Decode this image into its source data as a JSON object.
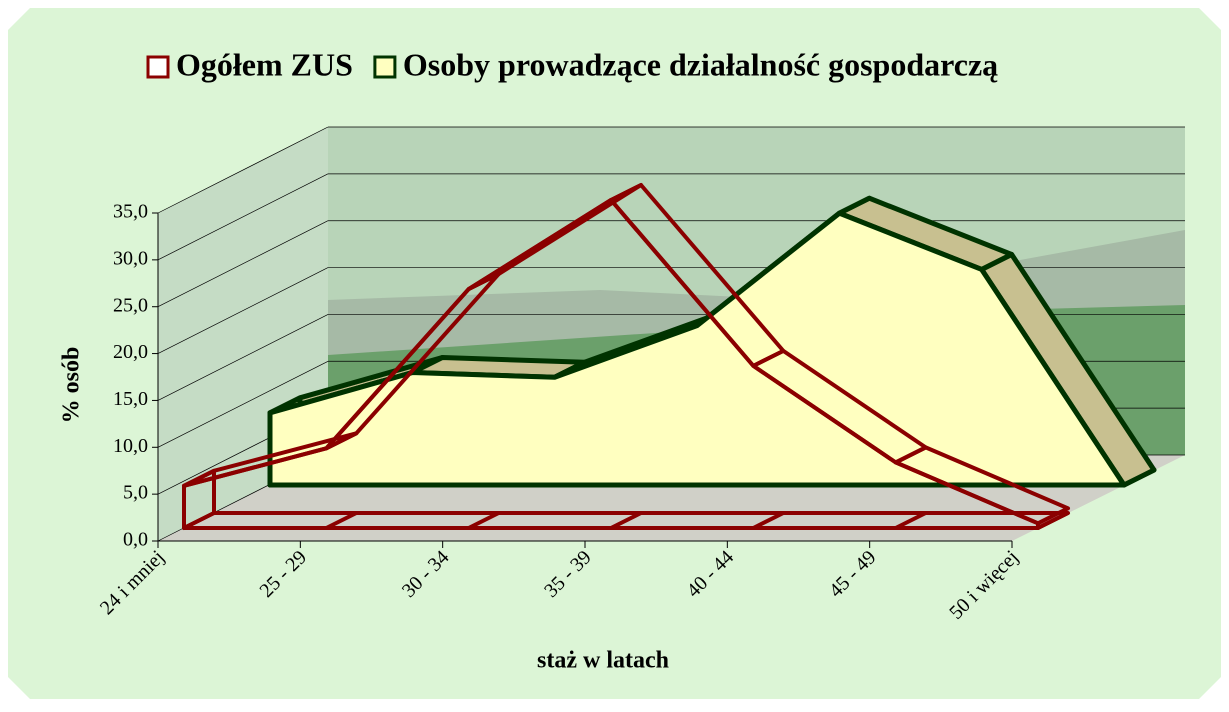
{
  "chart_data": {
    "type": "area3d",
    "x_label": "staż w latach",
    "y_label": "% osób",
    "categories": [
      "24 i mniej",
      "25 - 29",
      "30 - 34",
      "35 - 39",
      "40 - 44",
      "45 - 49",
      "50 i więcej"
    ],
    "series": [
      {
        "name": "Ogółem ZUS",
        "color": "#8b0000",
        "fill": "none",
        "values": [
          4.5,
          8.5,
          25.5,
          35.0,
          17.3,
          7.0,
          0.5
        ]
      },
      {
        "name": "Osoby prowadzące działalność gospodarczą",
        "color": "#003300",
        "fill": "#ffffc0",
        "values": [
          7.7,
          12.0,
          11.5,
          17.0,
          29.0,
          23.0,
          0.0
        ]
      }
    ],
    "ylim": [
      0,
      35
    ],
    "yticks": [
      {
        "value": 0,
        "label": "0,0"
      },
      {
        "value": 5,
        "label": "5,0"
      },
      {
        "value": 10,
        "label": "10,0"
      },
      {
        "value": 15,
        "label": "15,0"
      },
      {
        "value": 20,
        "label": "20,0"
      },
      {
        "value": 25,
        "label": "25,0"
      },
      {
        "value": 30,
        "label": "30,0"
      },
      {
        "value": 35,
        "label": "35,0"
      }
    ],
    "grid": true
  }
}
